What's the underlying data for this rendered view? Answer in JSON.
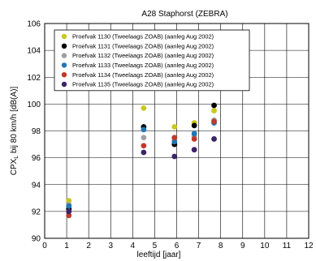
{
  "chart_data": {
    "type": "scatter",
    "title": "A28 Staphorst (ZEBRA)",
    "xlabel": "leeftijd [jaar]",
    "ylabel": "CPX",
    "ylabel_sub": "L",
    "ylabel_rest": " bij 80 km/h [dB(A)]",
    "xlim": [
      0,
      12
    ],
    "ylim": [
      90,
      106
    ],
    "xticks": [
      0,
      1,
      2,
      3,
      4,
      5,
      6,
      7,
      8,
      9,
      10,
      11,
      12
    ],
    "yticks": [
      90,
      92,
      94,
      96,
      98,
      100,
      102,
      104,
      106
    ],
    "grid": true,
    "legend_position": "top-left",
    "series": [
      {
        "name": "Proefvak 1130 (Tweelaags ZOAB) (aanleg Aug 2002)",
        "color": "#c8c81e",
        "points": [
          [
            1.1,
            92.8
          ],
          [
            4.5,
            99.7
          ],
          [
            5.9,
            98.3
          ],
          [
            6.8,
            98.6
          ],
          [
            7.7,
            99.5
          ]
        ]
      },
      {
        "name": "Proefvak 1131 (Tweelaags ZOAB) (aanleg Aug 2002)",
        "color": "#000000",
        "points": [
          [
            1.1,
            92.2
          ],
          [
            4.5,
            98.3
          ],
          [
            5.9,
            97.0
          ],
          [
            6.8,
            98.4
          ],
          [
            7.7,
            99.9
          ]
        ]
      },
      {
        "name": "Proefvak 1132 (Tweelaags ZOAB) (aanleg Aug 2002)",
        "color": "#a0a0a0",
        "points": [
          [
            1.1,
            92.5
          ],
          [
            4.5,
            97.5
          ],
          [
            5.9,
            97.4
          ],
          [
            6.8,
            97.6
          ],
          [
            7.7,
            98.8
          ]
        ]
      },
      {
        "name": "Proefvak 1133 (Tweelaags ZOAB) (aanleg Aug 2002)",
        "color": "#1f77b4",
        "points": [
          [
            1.1,
            92.4
          ],
          [
            4.5,
            98.1
          ],
          [
            5.9,
            97.2
          ],
          [
            6.8,
            97.8
          ],
          [
            7.7,
            98.6
          ]
        ]
      },
      {
        "name": "Proefvak 1134 (Tweelaags ZOAB) (aanleg Aug 2002)",
        "color": "#c0392b",
        "points": [
          [
            1.1,
            91.7
          ],
          [
            4.5,
            96.9
          ],
          [
            5.9,
            97.5
          ],
          [
            6.8,
            97.4
          ],
          [
            7.7,
            98.7
          ]
        ]
      },
      {
        "name": "Proefvak 1135 (Tweelaags ZOAB) (aanleg Aug 2002)",
        "color": "#3d2466",
        "points": [
          [
            1.1,
            92.0
          ],
          [
            4.5,
            96.4
          ],
          [
            5.9,
            96.1
          ],
          [
            6.8,
            96.6
          ],
          [
            7.7,
            97.4
          ]
        ]
      }
    ]
  }
}
